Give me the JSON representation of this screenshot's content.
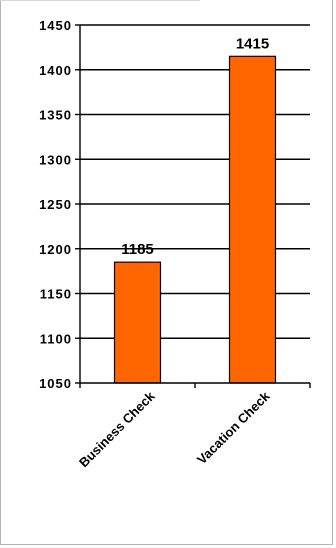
{
  "chart_data": {
    "type": "bar",
    "categories": [
      "Business Check",
      "Vacation Check"
    ],
    "values": [
      1185,
      1415
    ],
    "data_labels": [
      "1185",
      "1415"
    ],
    "title": "",
    "xlabel": "",
    "ylabel": "",
    "ylim": [
      1050,
      1450
    ],
    "yticks": [
      1050,
      1100,
      1150,
      1200,
      1250,
      1300,
      1350,
      1400,
      1450
    ],
    "ytick_labels": [
      "1050",
      "1100",
      "1150",
      "1200",
      "1250",
      "1300",
      "1350",
      "1400",
      "1450"
    ],
    "grid": true,
    "legend": "none",
    "bar_color": "#ff6600",
    "bar_edge_color": "#000000"
  }
}
